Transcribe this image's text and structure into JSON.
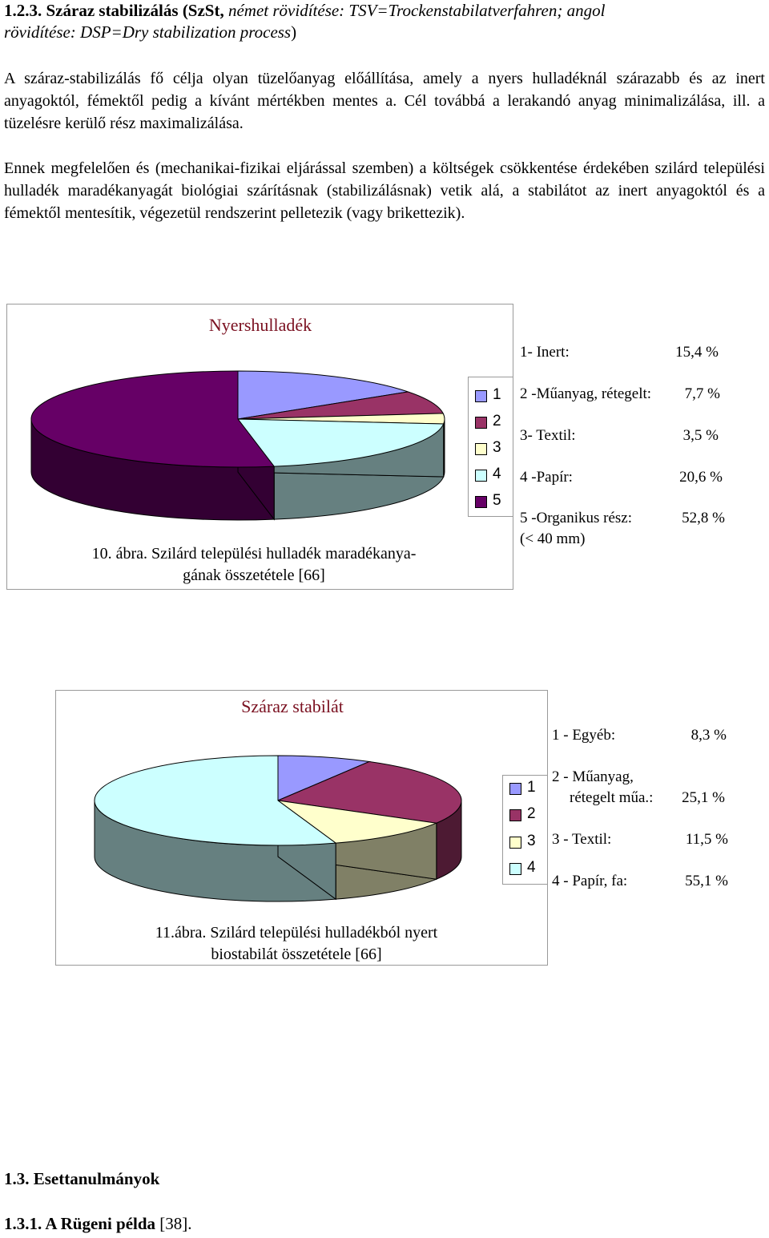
{
  "heading": {
    "number": "1.2.3.",
    "title": "Száraz stabilizálás (SzSt,",
    "italic1": "német rövidítése: TSV=Trockenstabilatverfahren; angol",
    "italic2": "rövidítése: DSP=Dry stabilization process",
    "close": ")"
  },
  "paragraphs": [
    "A száraz-stabilizálás fő célja olyan tüzelőanyag előállítása, amely a nyers hulladéknál szárazabb és az inert anyagoktól, fémektől pedig a kívánt mértékben mentes a. Cél továbbá a lerakandó anyag minimalizálása, ill. a tüzelésre kerülő rész maximalizálása.",
    "Ennek megfelelően és (mechanikai-fizikai eljárással szemben) a költségek csökkentése érdekében szilárd települési hulladék maradékanyagát biológiai szárításnak (stabilizálásnak) vetik alá, a stabilátot az inert anyagoktól és a fémektől mentesítik, végezetül rendszerint pelletezik (vagy brikettezik)."
  ],
  "chart_data": [
    {
      "type": "pie",
      "title": "Nyershulladék",
      "categories": [
        "1",
        "2",
        "3",
        "4",
        "5"
      ],
      "values": [
        15.4,
        7.7,
        3.5,
        20.6,
        52.8
      ],
      "colors": [
        "#9999ff",
        "#993366",
        "#ffffcc",
        "#ccffff",
        "#660066"
      ],
      "legend": [
        "1",
        "2",
        "3",
        "4",
        "5"
      ],
      "legend_position": "right",
      "side_labels": [
        {
          "label": "1- Inert:",
          "value": "15,4 %"
        },
        {
          "label": "2 -Műanyag, rétegelt:",
          "value": "7,7 %"
        },
        {
          "label": "3- Textil:",
          "value": "3,5 %"
        },
        {
          "label": "4 -Papír:",
          "value": "20,6 %"
        },
        {
          "label": "5 -Organikus rész:",
          "value": "52,8 %"
        }
      ],
      "side_extra": "(< 40 mm)",
      "caption": [
        "10. ábra. Szilárd települési hulladék maradékanya-",
        "gának összetétele [66]"
      ]
    },
    {
      "type": "pie",
      "title": "Száraz stabilát",
      "categories": [
        "1",
        "2",
        "3",
        "4"
      ],
      "values": [
        8.3,
        25.1,
        11.5,
        55.1
      ],
      "colors": [
        "#9999ff",
        "#993366",
        "#ffffcc",
        "#ccffff"
      ],
      "legend": [
        "1",
        "2",
        "3",
        "4"
      ],
      "legend_position": "right",
      "side_labels": [
        {
          "label": "1 - Egyéb:",
          "value": "8,3 %"
        },
        {
          "label": "2 - Műanyag,",
          "value": ""
        },
        {
          "label": "rétegelt műa.:",
          "value": "25,1 %"
        },
        {
          "label": "3 - Textil:",
          "value": "11,5 %"
        },
        {
          "label": "4 - Papír, fa:",
          "value": "55,1 %"
        }
      ],
      "caption": [
        "11.ábra. Szilárd települési hulladékból nyert",
        "biostabilát összetétele [66]"
      ]
    }
  ],
  "footer": {
    "h1": "1.3. Esettanulmányok",
    "h2_bold": "1.3.1. A Rügeni példa",
    "h2_rest": " [38]."
  }
}
